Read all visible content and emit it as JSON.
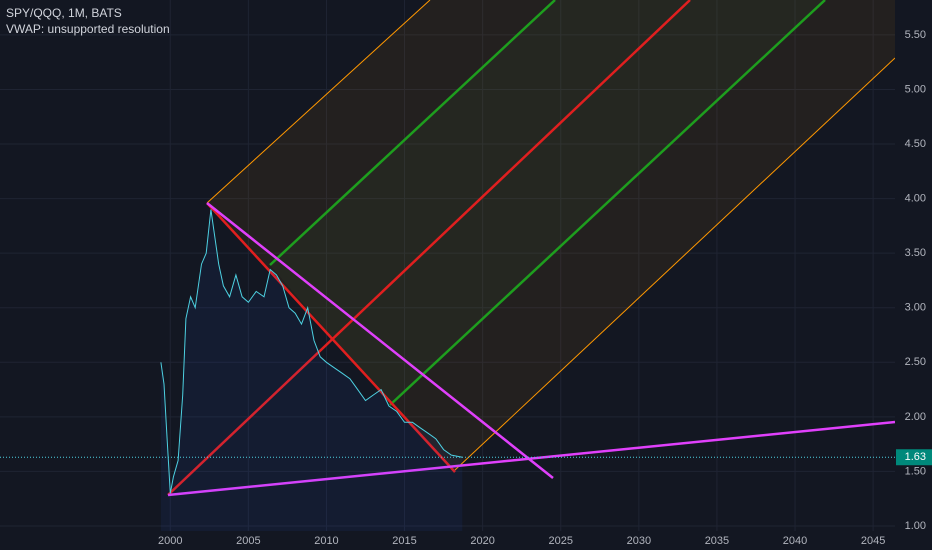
{
  "chart_data": {
    "type": "line",
    "title": "SPY/QQQ, 1M, BATS",
    "subtitle": "VWAP: unsupported resolution",
    "x": [
      1999.4,
      1999.6,
      1999.8,
      2000.0,
      2000.2,
      2000.5,
      2000.8,
      2001.0,
      2001.3,
      2001.6,
      2002.0,
      2002.3,
      2002.6,
      2002.8,
      2003.1,
      2003.4,
      2003.8,
      2004.2,
      2004.6,
      2005.0,
      2005.5,
      2006.0,
      2006.4,
      2006.8,
      2007.2,
      2007.6,
      2008.0,
      2008.4,
      2008.8,
      2009.2,
      2009.6,
      2010.0,
      2010.5,
      2011.0,
      2011.5,
      2012.0,
      2012.5,
      2013.0,
      2013.5,
      2014.0,
      2014.5,
      2015.0,
      2015.5,
      2016.0,
      2016.5,
      2017.0,
      2017.5,
      2018.0,
      2018.7
    ],
    "series": [
      {
        "color": "#4dd0e1",
        "values": [
          2.5,
          2.3,
          1.8,
          1.3,
          1.45,
          1.6,
          2.2,
          2.9,
          3.1,
          3.0,
          3.4,
          3.5,
          3.9,
          3.7,
          3.4,
          3.2,
          3.1,
          3.3,
          3.1,
          3.05,
          3.15,
          3.1,
          3.35,
          3.3,
          3.2,
          3.0,
          2.95,
          2.85,
          3.0,
          2.7,
          2.55,
          2.5,
          2.45,
          2.4,
          2.35,
          2.25,
          2.15,
          2.2,
          2.25,
          2.1,
          2.05,
          1.95,
          1.95,
          1.9,
          1.85,
          1.8,
          1.7,
          1.65,
          1.63
        ]
      }
    ],
    "last_value": 1.63,
    "xlim": [
      1989.1,
      2046.4
    ],
    "xticks": [
      2000,
      2005,
      2010,
      2015,
      2020,
      2025,
      2030,
      2035,
      2040,
      2045
    ],
    "ylim": [
      0.78,
      5.82
    ],
    "yticks": [
      {
        "value": 1,
        "label": "1.00"
      },
      {
        "value": 1.5,
        "label": "1.50"
      },
      {
        "value": 2,
        "label": "2.00"
      },
      {
        "value": 2.5,
        "label": "2.50"
      },
      {
        "value": 3,
        "label": "3.00"
      },
      {
        "value": 3.5,
        "label": "3.50"
      },
      {
        "value": 4,
        "label": "4.00"
      },
      {
        "value": 4.5,
        "label": "4.50"
      },
      {
        "value": 5,
        "label": "5.00"
      },
      {
        "value": 5.5,
        "label": "5.50"
      }
    ],
    "grid": true
  }
}
